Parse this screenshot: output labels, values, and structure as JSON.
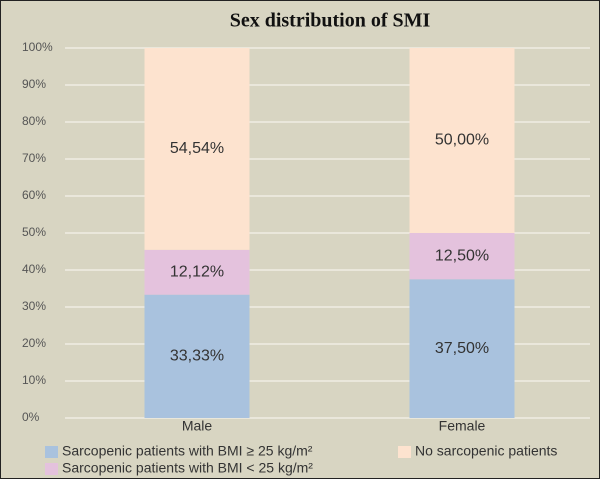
{
  "chart_data": {
    "type": "stacked_bar",
    "title": "Sex distribution of SMI",
    "categories": [
      "Male",
      "Female"
    ],
    "series": [
      {
        "name": "Sarcopenic patients with BMI ≥ 25 kg/m²",
        "color": "#a9c2de",
        "values": [
          33.33,
          37.5
        ],
        "value_labels": [
          "33,33%",
          "37,50%"
        ]
      },
      {
        "name": "Sarcopenic patients with BMI < 25 kg/m²",
        "color": "#e4c2dd",
        "values": [
          12.12,
          12.5
        ],
        "value_labels": [
          "12,12%",
          "12,50%"
        ]
      },
      {
        "name": "No sarcopenic patients",
        "color": "#fde3cf",
        "values": [
          54.54,
          50.0
        ],
        "value_labels": [
          "54,54%",
          "50,00%"
        ]
      }
    ],
    "ylim": [
      0,
      100
    ],
    "yticks": [
      {
        "value": 0,
        "label": "0%"
      },
      {
        "value": 10,
        "label": "10%"
      },
      {
        "value": 20,
        "label": "20%"
      },
      {
        "value": 30,
        "label": "30%"
      },
      {
        "value": 40,
        "label": "40%"
      },
      {
        "value": 50,
        "label": "50%"
      },
      {
        "value": 60,
        "label": "60%"
      },
      {
        "value": 70,
        "label": "70%"
      },
      {
        "value": 80,
        "label": "80%"
      },
      {
        "value": 90,
        "label": "90%"
      },
      {
        "value": 100,
        "label": "100%"
      }
    ],
    "grid": true
  }
}
